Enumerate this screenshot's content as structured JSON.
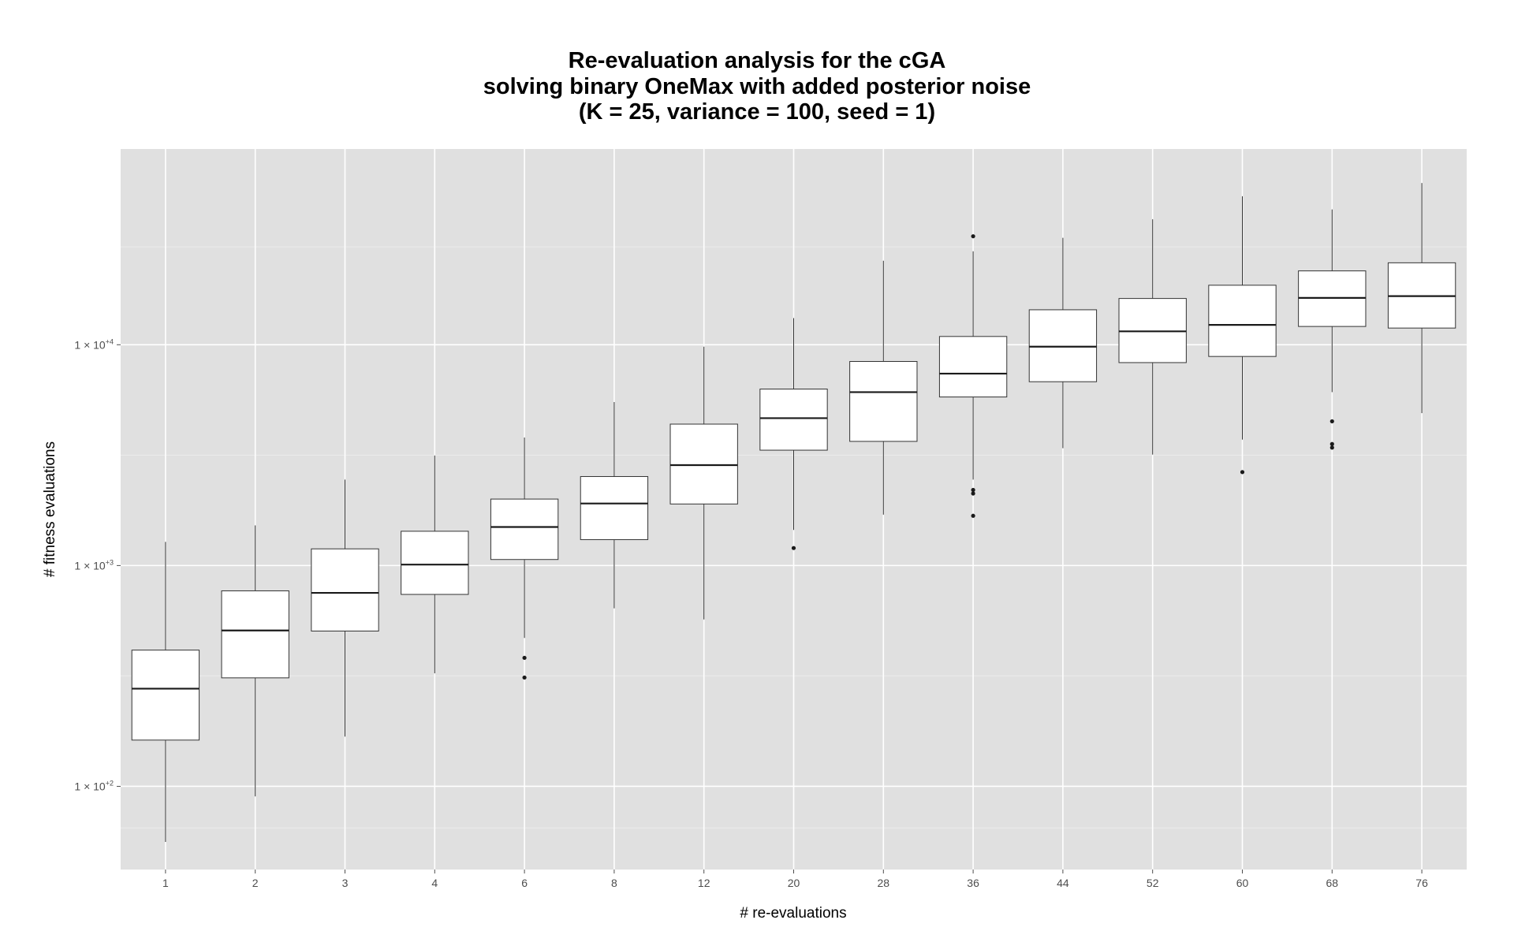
{
  "chart_data": {
    "type": "boxplot",
    "title_lines": [
      "Re-evaluation analysis for the cGA",
      "solving binary OneMax with added posterior noise",
      "(K = 25, variance = 100, seed = 1)"
    ],
    "xlabel": "# re-evaluations",
    "ylabel": "# fitness evaluations",
    "y_scale": "log10",
    "ylim": [
      42,
      77000
    ],
    "y_ticks": [
      {
        "value": 100,
        "label_base": "1 × 10",
        "label_exp": "+2"
      },
      {
        "value": 1000,
        "label_base": "1 × 10",
        "label_exp": "+3"
      },
      {
        "value": 10000,
        "label_base": "1 × 10",
        "label_exp": "+4"
      }
    ],
    "grid": true,
    "background": "#e0e0e0",
    "grid_major_color": "#ffffff",
    "grid_minor_color": "#ebebeb",
    "categories": [
      "1",
      "2",
      "3",
      "4",
      "6",
      "8",
      "12",
      "20",
      "28",
      "36",
      "44",
      "52",
      "60",
      "68",
      "76"
    ],
    "boxes": [
      {
        "category": "1",
        "min": 56,
        "q1": 162,
        "median": 277,
        "q3": 414,
        "max": 1280,
        "outliers": []
      },
      {
        "category": "2",
        "min": 90,
        "q1": 310,
        "median": 508,
        "q3": 768,
        "max": 1520,
        "outliers": []
      },
      {
        "category": "3",
        "min": 168,
        "q1": 505,
        "median": 752,
        "q3": 1190,
        "max": 2450,
        "outliers": []
      },
      {
        "category": "4",
        "min": 325,
        "q1": 740,
        "median": 1010,
        "q3": 1430,
        "max": 3150,
        "outliers": []
      },
      {
        "category": "6",
        "min": 470,
        "q1": 1065,
        "median": 1495,
        "q3": 2000,
        "max": 3800,
        "outliers": [
          382,
          311
        ]
      },
      {
        "category": "8",
        "min": 640,
        "q1": 1310,
        "median": 1910,
        "q3": 2530,
        "max": 5500,
        "outliers": []
      },
      {
        "category": "12",
        "min": 570,
        "q1": 1900,
        "median": 2850,
        "q3": 4370,
        "max": 9800,
        "outliers": []
      },
      {
        "category": "20",
        "min": 1450,
        "q1": 3330,
        "median": 4650,
        "q3": 6300,
        "max": 13200,
        "outliers": [
          1200
        ]
      },
      {
        "category": "28",
        "min": 1700,
        "q1": 3650,
        "median": 6100,
        "q3": 8400,
        "max": 24000,
        "outliers": []
      },
      {
        "category": "36",
        "min": 2450,
        "q1": 5800,
        "median": 7400,
        "q3": 10900,
        "max": 26500,
        "outliers": [
          31000,
          2200,
          2120,
          1680
        ]
      },
      {
        "category": "44",
        "min": 3400,
        "q1": 6800,
        "median": 9800,
        "q3": 14400,
        "max": 30500,
        "outliers": []
      },
      {
        "category": "52",
        "min": 3180,
        "q1": 8300,
        "median": 11500,
        "q3": 16200,
        "max": 37000,
        "outliers": []
      },
      {
        "category": "60",
        "min": 3720,
        "q1": 8850,
        "median": 12300,
        "q3": 18600,
        "max": 47000,
        "outliers": [
          2650
        ]
      },
      {
        "category": "68",
        "min": 6100,
        "q1": 12100,
        "median": 16300,
        "q3": 21600,
        "max": 41000,
        "outliers": [
          4500,
          3550,
          3420
        ]
      },
      {
        "category": "76",
        "min": 4900,
        "q1": 11900,
        "median": 16600,
        "q3": 23500,
        "max": 54000,
        "outliers": []
      }
    ]
  }
}
